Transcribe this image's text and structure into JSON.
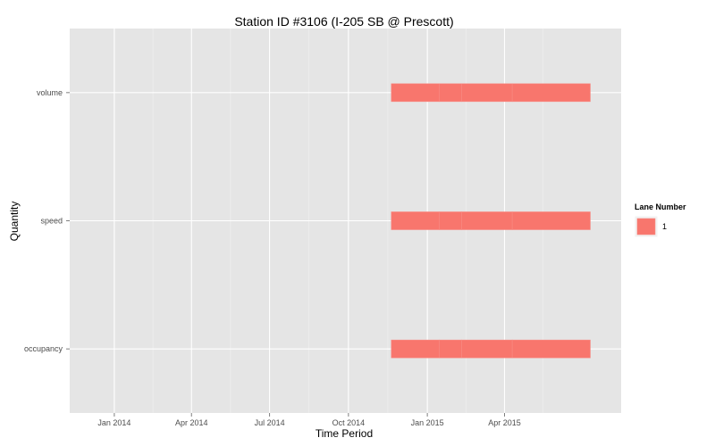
{
  "chart_data": {
    "type": "bar",
    "orientation": "horizontal",
    "title": "Station ID #3106 (I-205 SB @ Prescott)",
    "xlabel": "Time Period",
    "ylabel": "Quantity",
    "x_ticks": [
      {
        "date": "2014-01-01",
        "label": "Jan 2014"
      },
      {
        "date": "2014-04-01",
        "label": "Apr 2014"
      },
      {
        "date": "2014-07-01",
        "label": "Jul 2014"
      },
      {
        "date": "2014-10-01",
        "label": "Oct 2014"
      },
      {
        "date": "2015-01-01",
        "label": "Jan 2015"
      },
      {
        "date": "2015-04-01",
        "label": "Apr 2015"
      }
    ],
    "xlim": [
      "2013-11-10",
      "2015-08-15"
    ],
    "categories": [
      "volume",
      "speed",
      "occupancy"
    ],
    "legend": {
      "title": "Lane Number",
      "position": "right",
      "entries": [
        {
          "label": "1",
          "color": "#f8766d"
        }
      ]
    },
    "grid": true,
    "series": [
      {
        "name": "1",
        "color": "#f8766d",
        "segments": [
          {
            "category": "volume",
            "start": "2014-11-20",
            "end": "2015-01-15"
          },
          {
            "category": "volume",
            "start": "2015-01-15",
            "end": "2015-02-10"
          },
          {
            "category": "volume",
            "start": "2015-02-10",
            "end": "2015-04-10"
          },
          {
            "category": "volume",
            "start": "2015-04-10",
            "end": "2015-07-10"
          },
          {
            "category": "speed",
            "start": "2014-11-20",
            "end": "2015-01-15"
          },
          {
            "category": "speed",
            "start": "2015-01-15",
            "end": "2015-02-10"
          },
          {
            "category": "speed",
            "start": "2015-02-10",
            "end": "2015-04-10"
          },
          {
            "category": "speed",
            "start": "2015-04-10",
            "end": "2015-07-10"
          },
          {
            "category": "occupancy",
            "start": "2014-11-20",
            "end": "2015-01-15"
          },
          {
            "category": "occupancy",
            "start": "2015-01-15",
            "end": "2015-02-10"
          },
          {
            "category": "occupancy",
            "start": "2015-02-10",
            "end": "2015-04-10"
          },
          {
            "category": "occupancy",
            "start": "2015-04-10",
            "end": "2015-07-10"
          }
        ]
      }
    ]
  }
}
